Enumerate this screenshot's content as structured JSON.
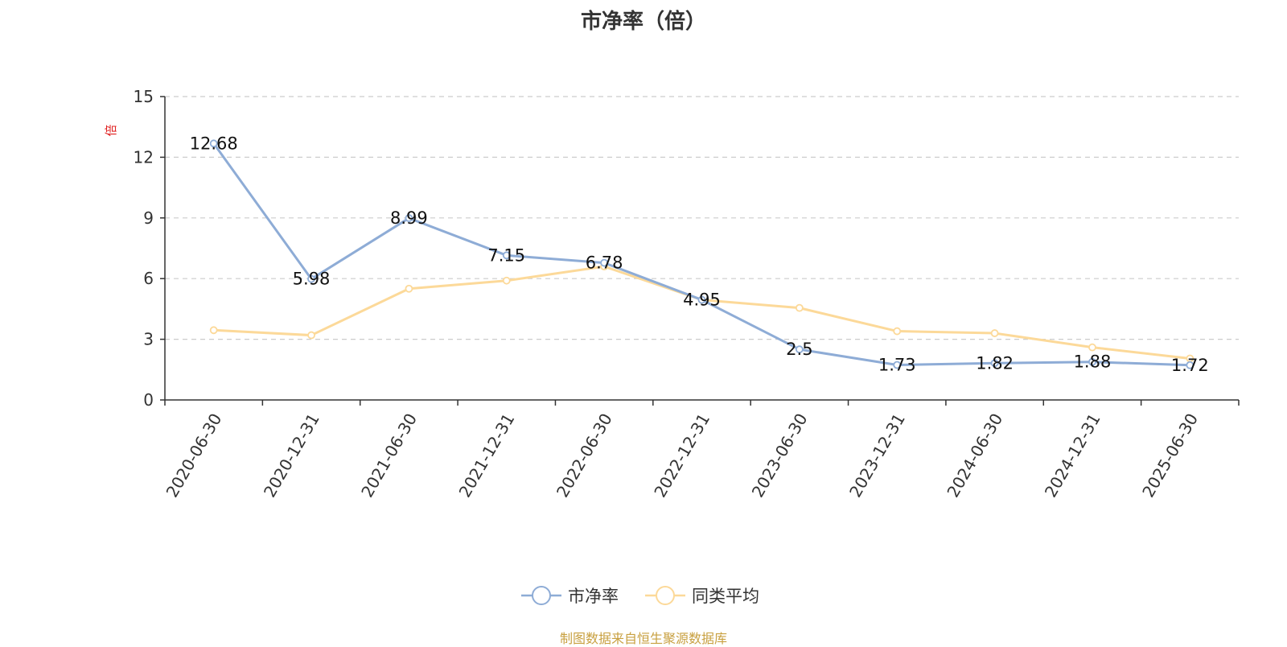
{
  "source_note": "制图数据来自恒生聚源数据库",
  "colors": {
    "series_pb": "#8eacd6",
    "series_avg": "#fcd999",
    "grid": "#cccccc",
    "axis": "#333333",
    "unit": "#e02020",
    "source": "#c8a040"
  },
  "chart_data": {
    "type": "line",
    "title": "市净率（倍）",
    "ylabel": "倍",
    "x": [
      "2020-06-30",
      "2020-12-31",
      "2021-06-30",
      "2021-12-31",
      "2022-06-30",
      "2022-12-31",
      "2023-06-30",
      "2023-12-31",
      "2024-06-30",
      "2024-12-31",
      "2025-06-30"
    ],
    "ylim": [
      0,
      15
    ],
    "yticks": [
      0,
      3,
      6,
      9,
      12,
      15
    ],
    "grid": true,
    "legend_position": "bottom-center",
    "series": [
      {
        "name": "市净率",
        "values": [
          12.68,
          5.98,
          8.99,
          7.15,
          6.78,
          4.95,
          2.5,
          1.73,
          1.82,
          1.88,
          1.72
        ],
        "labels": [
          "12.68",
          "5.98",
          "8.99",
          "7.15",
          "6.78",
          "4.95",
          "2.5",
          "1.73",
          "1.82",
          "1.88",
          "1.72"
        ],
        "show_labels": true
      },
      {
        "name": "同类平均",
        "values": [
          3.45,
          3.2,
          5.5,
          5.9,
          6.6,
          4.95,
          4.55,
          3.4,
          3.3,
          2.6,
          2.05
        ],
        "show_labels": false
      }
    ]
  }
}
